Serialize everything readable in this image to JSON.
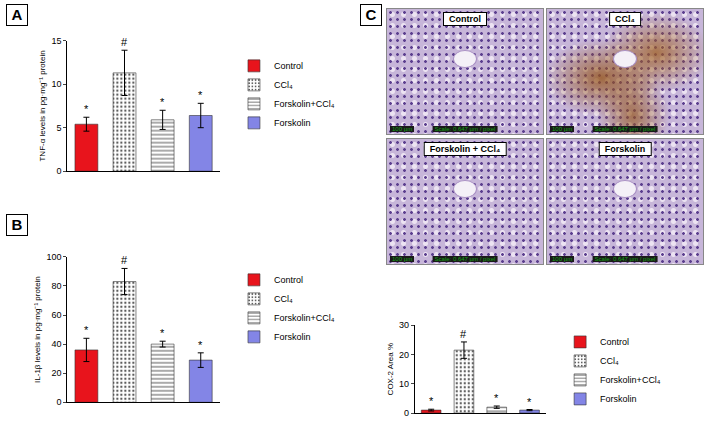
{
  "chart_data": [
    {
      "panel_label": "A",
      "type": "bar",
      "categories": [
        "Control",
        "CCl₄",
        "Forskolin+CCl₄",
        "Forskolin"
      ],
      "values": [
        5.4,
        11.3,
        5.9,
        6.4
      ],
      "errors": [
        0.8,
        2.6,
        1.1,
        1.4
      ],
      "annotations": [
        "*",
        "#",
        "*",
        "*"
      ],
      "colors": [
        "#e8141c",
        "#f3c48e",
        "#7fd95a",
        "#8385e6"
      ],
      "y_label": "TNF-α levels in pg·mg⁻¹ protein",
      "ylim": [
        0,
        15
      ],
      "yticks": [
        0,
        5,
        10,
        15
      ],
      "grid": false,
      "legend": "right",
      "tick_labels": "y"
    },
    {
      "panel_label": "B",
      "type": "bar",
      "categories": [
        "Control",
        "CCl₄",
        "Forskolin+CCl₄",
        "Forskolin"
      ],
      "values": [
        36,
        83,
        40,
        29
      ],
      "errors": [
        8,
        9,
        2,
        5
      ],
      "annotations": [
        "*",
        "#",
        "*",
        "*"
      ],
      "colors": [
        "#e8141c",
        "#f3c48e",
        "#7fd95a",
        "#8385e6"
      ],
      "y_label": "IL-1β levels in pg·mg⁻¹ protein",
      "ylim": [
        0,
        100
      ],
      "yticks": [
        0,
        20,
        40,
        60,
        80,
        100
      ],
      "grid": false,
      "legend": "right",
      "tick_labels": "y"
    },
    {
      "panel_label": "C",
      "type": "bar",
      "categories": [
        "Control",
        "CCl₄",
        "Forskolin+CCl₄",
        "Forskolin"
      ],
      "values": [
        1.0,
        21.5,
        2.0,
        1.0
      ],
      "errors": [
        0.3,
        2.8,
        0.4,
        0.2
      ],
      "annotations": [
        "*",
        "#",
        "*",
        "*"
      ],
      "colors": [
        "#e8141c",
        "#f3c48e",
        "#7fd95a",
        "#8385e6"
      ],
      "y_label": "COX-2 Area %",
      "ylim": [
        0,
        30
      ],
      "yticks": [
        0,
        10,
        20,
        30
      ],
      "grid": false,
      "legend": "right",
      "tick_labels": "y"
    }
  ],
  "micrographs": {
    "panel_label": "C",
    "images": [
      "Control",
      "CCl₄",
      "Forskolin + CCl₄",
      "Forskolin"
    ],
    "scale_bar": "100 µm",
    "scale_note": "Scale: 0.647 µm / pixel"
  }
}
